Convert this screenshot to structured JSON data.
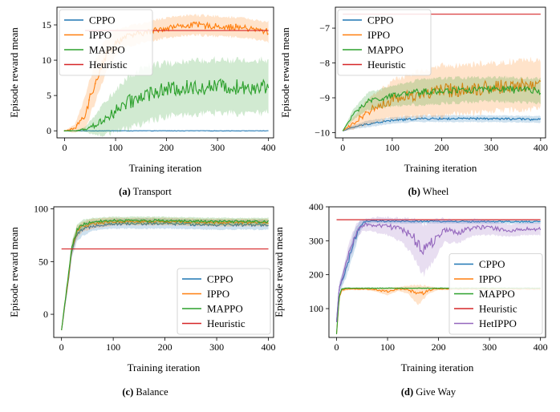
{
  "colors": {
    "CPPO": "#1f77b4",
    "IPPO": "#ff7f0e",
    "MAPPO": "#2ca02c",
    "Heuristic": "#d62728",
    "HetIPPO": "#9467bd"
  },
  "chart_data": [
    {
      "type": "line",
      "caption_label": "(a)",
      "caption_text": "Transport",
      "xlabel": "Training iteration",
      "ylabel": "Episode reward mean",
      "xlim": [
        -15,
        410
      ],
      "ylim": [
        -1,
        17.5
      ],
      "xticks": [
        0,
        100,
        200,
        300,
        400
      ],
      "yticks": [
        0,
        5,
        10,
        15
      ],
      "legend_position": "top-left",
      "legend": [
        "CPPO",
        "IPPO",
        "MAPPO",
        "Heuristic"
      ],
      "series": [
        {
          "name": "CPPO",
          "x": [
            0,
            100,
            200,
            300,
            400
          ],
          "y": [
            0,
            0,
            0,
            0,
            0
          ],
          "band": [
            0,
            0,
            0,
            0,
            0
          ]
        },
        {
          "name": "IPPO",
          "x": [
            0,
            20,
            40,
            60,
            80,
            100,
            120,
            150,
            200,
            250,
            300,
            350,
            400
          ],
          "y": [
            0,
            0.3,
            2.5,
            7,
            10.5,
            12.5,
            13.3,
            13.8,
            14.6,
            15,
            14.8,
            14.6,
            14
          ],
          "band": [
            0,
            0.5,
            2,
            2.5,
            2,
            1.5,
            1.2,
            1.2,
            1.2,
            1.2,
            1.2,
            1.2,
            1.2
          ]
        },
        {
          "name": "MAPPO",
          "x": [
            0,
            20,
            40,
            60,
            80,
            100,
            120,
            140,
            160,
            200,
            250,
            300,
            350,
            400
          ],
          "y": [
            0,
            0,
            0.2,
            0.8,
            1.8,
            2.8,
            3.8,
            4.5,
            5.2,
            5.8,
            6.1,
            6.3,
            6.2,
            6.3
          ],
          "band": [
            0,
            0,
            0.3,
            1.2,
            2,
            2.5,
            3,
            3.2,
            3.3,
            3.2,
            3.2,
            3.2,
            3.2,
            3.2
          ]
        },
        {
          "name": "Heuristic",
          "x": [
            0,
            400
          ],
          "y": [
            14.2,
            14.2
          ],
          "band": [
            0,
            0
          ],
          "segment": [
            40,
            400
          ]
        }
      ]
    },
    {
      "type": "line",
      "caption_label": "(b)",
      "caption_text": "Wheel",
      "xlabel": "Training iteration",
      "ylabel": "Episode reward mean",
      "xlim": [
        -15,
        410
      ],
      "ylim": [
        -10.15,
        -6.4
      ],
      "xticks": [
        0,
        100,
        200,
        300,
        400
      ],
      "yticks": [
        -10,
        -9,
        -8,
        -7
      ],
      "legend_position": "top-left",
      "legend": [
        "CPPO",
        "IPPO",
        "MAPPO",
        "Heuristic"
      ],
      "series": [
        {
          "name": "CPPO",
          "x": [
            0,
            20,
            50,
            100,
            150,
            200,
            300,
            400
          ],
          "y": [
            -9.95,
            -9.85,
            -9.75,
            -9.65,
            -9.6,
            -9.6,
            -9.6,
            -9.62
          ],
          "band": [
            0,
            0.05,
            0.08,
            0.08,
            0.08,
            0.08,
            0.08,
            0.08
          ]
        },
        {
          "name": "IPPO",
          "x": [
            0,
            20,
            50,
            100,
            150,
            200,
            300,
            400
          ],
          "y": [
            -9.95,
            -9.75,
            -9.4,
            -9.05,
            -8.9,
            -8.8,
            -8.7,
            -8.6
          ],
          "band": [
            0,
            0.15,
            0.3,
            0.45,
            0.55,
            0.6,
            0.6,
            0.6
          ]
        },
        {
          "name": "MAPPO",
          "x": [
            0,
            20,
            50,
            100,
            150,
            200,
            300,
            400
          ],
          "y": [
            -9.95,
            -9.5,
            -9.1,
            -8.95,
            -8.85,
            -8.8,
            -8.75,
            -8.8
          ],
          "band": [
            0,
            0.12,
            0.2,
            0.25,
            0.3,
            0.3,
            0.3,
            0.3
          ]
        },
        {
          "name": "Heuristic",
          "x": [
            0,
            400
          ],
          "y": [
            -6.6,
            -6.6
          ],
          "band": [
            0,
            0
          ],
          "segment": [
            0,
            400
          ]
        }
      ]
    },
    {
      "type": "line",
      "caption_label": "(c)",
      "caption_text": "Balance",
      "xlabel": "Training iteration",
      "ylabel": "Episode reward mean",
      "xlim": [
        -15,
        410
      ],
      "ylim": [
        -22,
        102
      ],
      "xticks": [
        0,
        100,
        200,
        300,
        400
      ],
      "yticks": [
        0,
        50,
        100
      ],
      "legend_position": "bottom-right",
      "legend": [
        "CPPO",
        "IPPO",
        "MAPPO",
        "Heuristic"
      ],
      "series": [
        {
          "name": "CPPO",
          "x": [
            0,
            10,
            20,
            30,
            40,
            60,
            100,
            200,
            300,
            400
          ],
          "y": [
            -15,
            20,
            60,
            75,
            80,
            84,
            86,
            86,
            85,
            85
          ],
          "band": [
            0,
            3,
            5,
            5,
            5,
            4,
            4,
            4,
            4,
            4
          ]
        },
        {
          "name": "IPPO",
          "x": [
            0,
            10,
            20,
            30,
            40,
            60,
            100,
            200,
            300,
            400
          ],
          "y": [
            -15,
            22,
            62,
            78,
            83,
            86,
            88,
            88,
            87,
            87
          ],
          "band": [
            0,
            3,
            5,
            5,
            4,
            4,
            3,
            3,
            3,
            3
          ]
        },
        {
          "name": "MAPPO",
          "x": [
            0,
            10,
            20,
            30,
            40,
            60,
            100,
            200,
            300,
            400
          ],
          "y": [
            -15,
            24,
            64,
            80,
            85,
            88,
            89,
            89,
            88,
            88
          ],
          "band": [
            0,
            3,
            4,
            4,
            4,
            3,
            3,
            3,
            3,
            3
          ]
        },
        {
          "name": "Heuristic",
          "x": [
            0,
            400
          ],
          "y": [
            62,
            62
          ],
          "band": [
            0,
            0
          ],
          "segment": [
            0,
            400
          ]
        }
      ]
    },
    {
      "type": "line",
      "caption_label": "(d)",
      "caption_text": "Give Way",
      "xlabel": "Training iteration",
      "ylabel": "Episode reward mean",
      "xlim": [
        -15,
        410
      ],
      "ylim": [
        15,
        400
      ],
      "xticks": [
        0,
        100,
        200,
        300,
        400
      ],
      "yticks": [
        100,
        200,
        300,
        400
      ],
      "legend_position": "bottom-right",
      "legend": [
        "CPPO",
        "IPPO",
        "MAPPO",
        "Heuristic",
        "HetIPPO"
      ],
      "series": [
        {
          "name": "CPPO",
          "x": [
            0,
            5,
            15,
            25,
            35,
            45,
            55,
            70,
            100,
            200,
            300,
            400
          ],
          "y": [
            60,
            160,
            200,
            250,
            300,
            340,
            355,
            358,
            357,
            357,
            356,
            356
          ],
          "band": [
            0,
            10,
            20,
            25,
            25,
            15,
            8,
            5,
            5,
            5,
            5,
            5
          ]
        },
        {
          "name": "IPPO",
          "x": [
            0,
            5,
            10,
            20,
            40,
            60,
            80,
            100,
            120,
            140,
            160,
            180,
            200,
            300,
            400
          ],
          "y": [
            25,
            130,
            155,
            158,
            158,
            158,
            155,
            150,
            158,
            156,
            140,
            155,
            158,
            158,
            158
          ],
          "band": [
            0,
            5,
            5,
            3,
            3,
            3,
            5,
            10,
            5,
            10,
            25,
            10,
            3,
            3,
            3
          ]
        },
        {
          "name": "MAPPO",
          "x": [
            0,
            5,
            10,
            20,
            100,
            200,
            300,
            400
          ],
          "y": [
            25,
            135,
            158,
            160,
            160,
            160,
            160,
            160
          ],
          "band": [
            0,
            5,
            3,
            2,
            2,
            2,
            2,
            2
          ]
        },
        {
          "name": "Heuristic",
          "x": [
            0,
            400
          ],
          "y": [
            362,
            362
          ],
          "band": [
            0,
            0
          ],
          "segment": [
            0,
            400
          ]
        },
        {
          "name": "HetIPPO",
          "x": [
            0,
            5,
            15,
            25,
            40,
            50,
            70,
            100,
            130,
            150,
            170,
            190,
            210,
            240,
            270,
            300,
            340,
            370,
            400
          ],
          "y": [
            60,
            160,
            210,
            270,
            330,
            345,
            348,
            343,
            330,
            310,
            275,
            300,
            330,
            325,
            340,
            338,
            330,
            335,
            335
          ],
          "band": [
            0,
            10,
            20,
            25,
            20,
            15,
            18,
            22,
            30,
            45,
            65,
            50,
            30,
            25,
            20,
            18,
            15,
            15,
            15
          ]
        }
      ]
    }
  ]
}
